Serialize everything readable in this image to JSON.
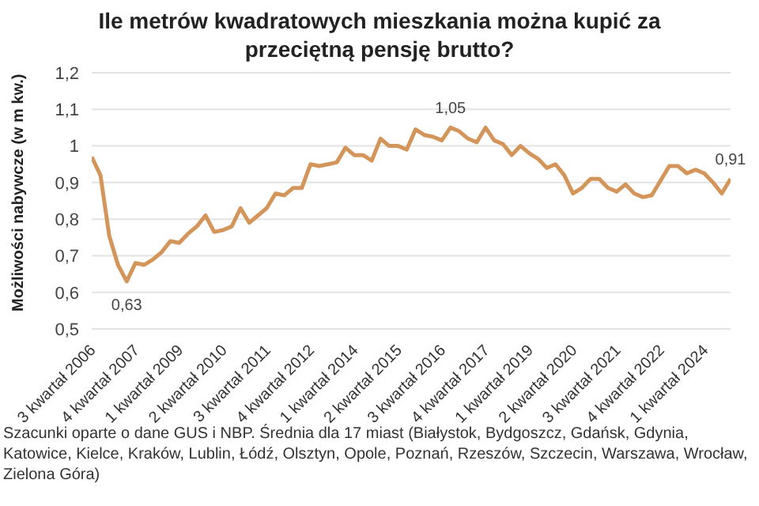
{
  "chart_data": {
    "type": "line",
    "title": "Ile metrów kwadratowych mieszkania można kupić za przeciętną pensję brutto?",
    "ylabel": "Możliwości nabywcze (w m kw.)",
    "annotations": [
      "Szacunki oparte o dane GUS i NBP. Średnia dla 17 miast (Białystok, Bydgoszcz, Gdańsk, Gdynia, Katowice, Kielce, Kraków, Lublin, Łódź, Olsztyn, Opole, Poznań, Rzeszów, Szczecin, Warszawa, Wrocław, Zielona Góra)"
    ],
    "categories": [
      "3 kwartał 2006",
      null,
      null,
      null,
      null,
      "4 kwartał 2007",
      null,
      null,
      null,
      null,
      "1 kwartał 2009",
      null,
      null,
      null,
      null,
      "2 kwartał 2010",
      null,
      null,
      null,
      null,
      "3 kwartał 2011",
      null,
      null,
      null,
      null,
      "4 kwartał 2012",
      null,
      null,
      null,
      null,
      "1 kwartał 2014",
      null,
      null,
      null,
      null,
      "2 kwartał 2015",
      null,
      null,
      null,
      null,
      "3 kwartał 2016",
      null,
      null,
      null,
      null,
      "4 kwartał 2017",
      null,
      null,
      null,
      null,
      "1 kwartał 2019",
      null,
      null,
      null,
      null,
      "2 kwartał 2020",
      null,
      null,
      null,
      null,
      "3 kwartał 2021",
      null,
      null,
      null,
      null,
      "4 kwartał 2022",
      null,
      null,
      null,
      null,
      "1 kwartał 2024",
      null,
      null,
      null
    ],
    "series": [
      {
        "color": "#d4955a",
        "values": [
          0.97,
          0.92,
          0.755,
          0.675,
          0.63,
          0.68,
          0.675,
          0.69,
          0.71,
          0.74,
          0.735,
          0.76,
          0.78,
          0.81,
          0.765,
          0.77,
          0.78,
          0.83,
          0.79,
          0.81,
          0.83,
          0.87,
          0.865,
          0.885,
          0.885,
          0.95,
          0.945,
          0.95,
          0.955,
          0.995,
          0.975,
          0.975,
          0.96,
          1.02,
          1.0,
          1.0,
          0.99,
          1.045,
          1.03,
          1.025,
          1.015,
          1.05,
          1.04,
          1.02,
          1.01,
          1.05,
          1.015,
          1.005,
          0.975,
          1.0,
          0.98,
          0.965,
          0.94,
          0.95,
          0.92,
          0.87,
          0.885,
          0.91,
          0.91,
          0.885,
          0.875,
          0.895,
          0.87,
          0.86,
          0.865,
          0.905,
          0.945,
          0.945,
          0.925,
          0.935,
          0.925,
          0.9,
          0.87,
          0.91
        ],
        "value_labels": [
          null,
          null,
          null,
          null,
          "0,63",
          null,
          null,
          null,
          null,
          null,
          null,
          null,
          null,
          null,
          null,
          null,
          null,
          null,
          null,
          null,
          null,
          null,
          null,
          null,
          null,
          null,
          null,
          null,
          null,
          null,
          null,
          null,
          null,
          null,
          null,
          null,
          null,
          null,
          null,
          null,
          null,
          "1,05",
          null,
          null,
          null,
          null,
          null,
          null,
          null,
          null,
          null,
          null,
          null,
          null,
          null,
          null,
          null,
          null,
          null,
          null,
          null,
          null,
          null,
          null,
          null,
          null,
          null,
          null,
          null,
          null,
          null,
          null,
          null,
          "0,91"
        ]
      }
    ],
    "ylim": [
      0.5,
      1.2
    ],
    "yticks": [
      {
        "value": 0.5,
        "label": "0,5"
      },
      {
        "value": 0.6,
        "label": "0,6"
      },
      {
        "value": 0.7,
        "label": "0,7"
      },
      {
        "value": 0.8,
        "label": "0,8"
      },
      {
        "value": 0.9,
        "label": "0,9"
      },
      1,
      {
        "value": 1.1,
        "label": "1,1"
      },
      {
        "value": 1.2,
        "label": "1,2"
      }
    ],
    "grid": "y",
    "legend": false,
    "marker": "none",
    "line_style": "solid"
  }
}
